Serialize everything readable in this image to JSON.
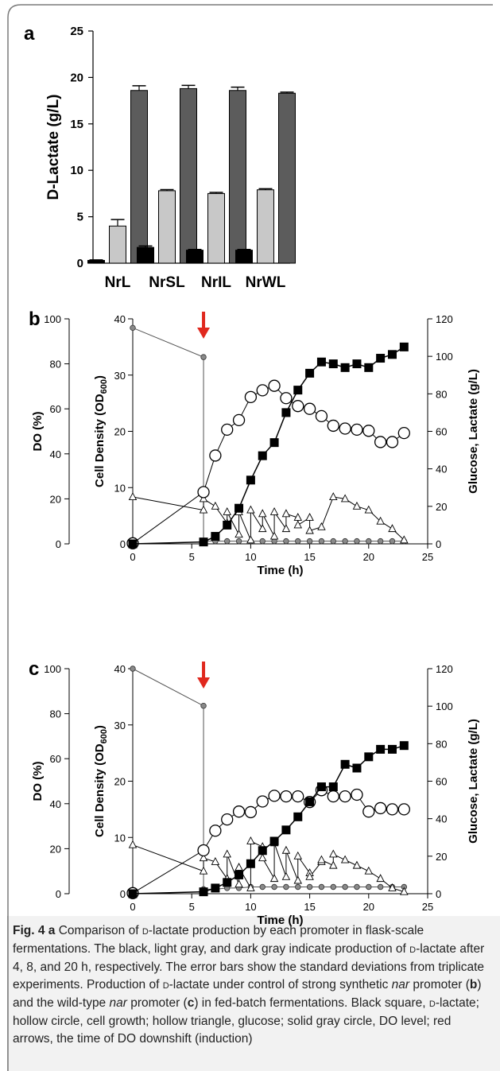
{
  "chart_data": [
    {
      "panel": "a",
      "type": "bar",
      "ylabel": "D-Lactate (g/L)",
      "ylim": [
        0,
        25
      ],
      "yticks": [
        0,
        5,
        10,
        15,
        20,
        25
      ],
      "categories": [
        "NrL",
        "NrSL",
        "NrIL",
        "NrWL"
      ],
      "series": [
        {
          "values": [
            0.3,
            1.7,
            1.4,
            1.4
          ],
          "errors": [
            0.05,
            0.15,
            0.08,
            0.08
          ],
          "color": "#000000"
        },
        {
          "values": [
            4.0,
            7.8,
            7.5,
            7.9
          ],
          "errors": [
            0.7,
            0.12,
            0.12,
            0.12
          ],
          "color": "#c8c8c8"
        },
        {
          "values": [
            18.6,
            18.8,
            18.6,
            18.3
          ],
          "errors": [
            0.5,
            0.35,
            0.35,
            0.12
          ],
          "color": "#5c5c5c"
        }
      ]
    },
    {
      "panel": "b",
      "type": "line",
      "xlabel": "Time (h)",
      "xlim": [
        0,
        25
      ],
      "xticks": [
        0,
        5,
        10,
        15,
        20,
        25
      ],
      "axes": {
        "do": {
          "label": "DO (%)",
          "lim": [
            0,
            100
          ],
          "ticks": [
            0,
            20,
            40,
            60,
            80,
            100
          ]
        },
        "cell": {
          "label": "Cell Density (OD600)",
          "lim": [
            0,
            40
          ],
          "ticks": [
            0,
            10,
            20,
            30,
            40
          ]
        },
        "right": {
          "label": "Glucose, Lactate (g/L)",
          "lim": [
            0,
            120
          ],
          "ticks": [
            0,
            20,
            40,
            60,
            80,
            100,
            120
          ]
        }
      },
      "induction_time": 6,
      "series": [
        {
          "axis": "right",
          "marker": "filled-square",
          "x": [
            0,
            6,
            7,
            8,
            9,
            10,
            11,
            12,
            13,
            14,
            15,
            16,
            17,
            18,
            19,
            20,
            21,
            22,
            23
          ],
          "y": [
            0,
            1,
            4,
            10,
            19,
            34,
            47,
            54,
            70,
            82,
            91,
            97,
            96,
            94,
            96,
            94,
            99,
            101,
            105
          ]
        },
        {
          "axis": "cell",
          "marker": "hollow-circle",
          "x": [
            0,
            6,
            7,
            8,
            9,
            10,
            11,
            12,
            13,
            14,
            15,
            16,
            17,
            18,
            19,
            20,
            21,
            22,
            23
          ],
          "y": [
            0.1,
            9.2,
            15.7,
            20.3,
            22,
            26.1,
            27.3,
            28.1,
            25.9,
            24.5,
            24,
            22.7,
            21,
            20.5,
            20.3,
            20.1,
            18.1,
            18.1,
            19.7
          ]
        },
        {
          "axis": "right",
          "marker": "hollow-triangle",
          "x": [
            0,
            6,
            6,
            7,
            8,
            8,
            9,
            9,
            10,
            10,
            11,
            11,
            12,
            12,
            13,
            13,
            14,
            14,
            15,
            15,
            16,
            17,
            18,
            19,
            20,
            21,
            22,
            23
          ],
          "y": [
            25,
            18,
            24,
            20,
            11,
            17,
            5,
            17,
            2,
            18,
            8,
            16,
            4,
            17,
            8,
            16,
            14,
            10,
            14,
            7,
            9,
            25,
            24,
            20,
            18,
            12,
            8,
            2
          ]
        },
        {
          "axis": "do",
          "marker": "gray-circle",
          "x": [
            0,
            6,
            6,
            7,
            8,
            9,
            10,
            11,
            12,
            13,
            14,
            15,
            16,
            17,
            18,
            19,
            20,
            21,
            22,
            23
          ],
          "y": [
            96,
            83,
            1.2,
            1.2,
            1.2,
            1.2,
            1.2,
            1.2,
            1.2,
            1.2,
            1.2,
            1.2,
            1.2,
            1.2,
            1.2,
            1.2,
            1.2,
            1.2,
            1.2,
            1.2
          ]
        }
      ]
    },
    {
      "panel": "c",
      "type": "line",
      "xlabel": "Time (h)",
      "xlim": [
        0,
        25
      ],
      "xticks": [
        0,
        5,
        10,
        15,
        20,
        25
      ],
      "axes": {
        "do": {
          "label": "DO (%)",
          "lim": [
            0,
            100
          ],
          "ticks": [
            0,
            20,
            40,
            60,
            80,
            100
          ]
        },
        "cell": {
          "label": "Cell Density (OD600)",
          "lim": [
            0,
            40
          ],
          "ticks": [
            0,
            10,
            20,
            30,
            40
          ]
        },
        "right": {
          "label": "Glucose, Lactate (g/L)",
          "lim": [
            0,
            120
          ],
          "ticks": [
            0,
            20,
            40,
            60,
            80,
            100,
            120
          ]
        }
      },
      "induction_time": 6,
      "series": [
        {
          "axis": "right",
          "marker": "filled-square",
          "x": [
            0,
            6,
            7,
            8,
            9,
            10,
            11,
            12,
            13,
            14,
            15,
            16,
            17,
            18,
            19,
            20,
            21,
            22,
            23
          ],
          "y": [
            0,
            1,
            3,
            6,
            10,
            16,
            23,
            28,
            34,
            41,
            49,
            57,
            57,
            69,
            67,
            73,
            77,
            77,
            79
          ]
        },
        {
          "axis": "cell",
          "marker": "hollow-circle",
          "x": [
            0,
            6,
            7,
            8,
            9,
            10,
            11,
            12,
            13,
            14,
            15,
            16,
            17,
            18,
            19,
            20,
            21,
            22,
            23
          ],
          "y": [
            0.1,
            7.7,
            11.2,
            13.2,
            14.6,
            14.5,
            16.4,
            17.4,
            17.3,
            17.3,
            16.3,
            18.4,
            17.3,
            17.3,
            17.6,
            14.6,
            15.2,
            15,
            15
          ]
        },
        {
          "axis": "right",
          "marker": "hollow-triangle",
          "x": [
            0,
            6,
            6,
            7,
            8,
            8,
            9,
            9,
            10,
            10,
            11,
            11,
            12,
            12,
            13,
            13,
            14,
            14,
            15,
            15,
            16,
            16,
            17,
            17,
            18,
            19,
            20,
            21,
            22,
            23
          ],
          "y": [
            26,
            12,
            19,
            17,
            8,
            21,
            5,
            14,
            3,
            28,
            25,
            19,
            8,
            27,
            9,
            23,
            7,
            20,
            11,
            9,
            17,
            18,
            15,
            21,
            18,
            15,
            12,
            8,
            3,
            1
          ]
        },
        {
          "axis": "do",
          "marker": "gray-circle",
          "x": [
            0,
            6,
            6,
            7,
            8,
            9,
            10,
            11,
            12,
            13,
            14,
            15,
            16,
            17,
            18,
            19,
            20,
            21,
            22,
            23
          ],
          "y": [
            100,
            83.5,
            2,
            2,
            2.5,
            2.5,
            3,
            3,
            3,
            3,
            3,
            3,
            3,
            3,
            3,
            3,
            3,
            3,
            3,
            3
          ]
        }
      ]
    }
  ],
  "labels": {
    "a_ylabel": "D-Lactate (g/L)",
    "x_time": "Time (h)",
    "do": "DO (%)",
    "cell_main": "Cell Density (OD",
    "cell_sub": "600",
    "cell_end": ")",
    "right": "Glucose, Lactate (g/L)"
  },
  "caption": {
    "fig": "Fig. 4",
    "a": "a",
    "t1": " Comparison of ",
    "d1": "D",
    "t2": "-lactate production by each promoter in flask-scale fermentations. The black, light gray, and dark gray indicate production of ",
    "d2": "D",
    "t3": "-lactate after 4, 8, and 20 h, respectively. The error bars show the standard deviations from triplicate experiments. Production of ",
    "d3": "D",
    "t4": "-lactate under control of strong synthetic ",
    "nar1": "nar",
    "t5": " promoter (",
    "b": "b",
    "t6": ") and the wild-type ",
    "nar2": "nar",
    "t7": " promoter (",
    "c": "c",
    "t8": ") in fed-batch fermentations. Black square, ",
    "d4": "D",
    "t9": "-lactate; hollow circle, cell growth; hollow triangle, glucose; solid gray circle, DO level; red arrows, the time of DO downshift (induction)"
  },
  "colors": {
    "black": "#000000",
    "light_gray": "#c8c8c8",
    "dark_gray": "#5c5c5c",
    "do_circle": "#8a8a8a",
    "arrow": "#e0281e",
    "frame": "#7a7a7a"
  }
}
